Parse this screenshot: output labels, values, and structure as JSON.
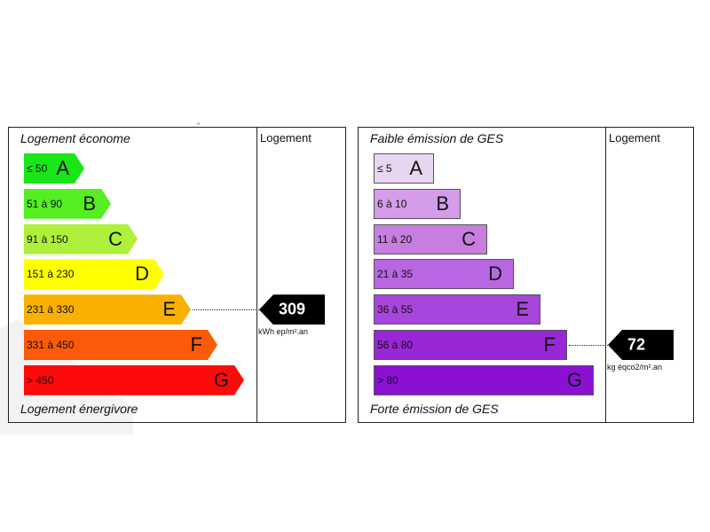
{
  "chart_data": [
    {
      "type": "bar",
      "top_label": "Logement économe",
      "bottom_label": "Logement énergivore",
      "column_header": "Logement",
      "categories": [
        "A",
        "B",
        "C",
        "D",
        "E",
        "F",
        "G"
      ],
      "ranges": [
        "≤ 50",
        "51 à 90",
        "91 à 150",
        "151 à 230",
        "231 à 330",
        "331 à 450",
        "> 450"
      ],
      "colors": [
        "#19e619",
        "#55ee22",
        "#aef03a",
        "#ffff00",
        "#f9b000",
        "#fb5a08",
        "#ff0a0a"
      ],
      "shape": "arrow",
      "rating": "E",
      "value": 309,
      "value_label": "309",
      "unit": "kWh ep/m².an"
    },
    {
      "type": "bar",
      "top_label": "Faible émission de GES",
      "bottom_label": "Forte émission de GES",
      "column_header": "Logement",
      "categories": [
        "A",
        "B",
        "C",
        "D",
        "E",
        "F",
        "G"
      ],
      "ranges": [
        "≤ 5",
        "6 à 10",
        "11 à 20",
        "21 à 35",
        "36 à 55",
        "56 à 80",
        "> 80"
      ],
      "colors": [
        "#e8d6f0",
        "#d49ce9",
        "#c77ee0",
        "#b966e2",
        "#a845dc",
        "#9827d6",
        "#8c10d4"
      ],
      "shape": "rect",
      "rating": "F",
      "value": 72,
      "value_label": "72",
      "unit": "kg éqco2/m².an"
    }
  ]
}
